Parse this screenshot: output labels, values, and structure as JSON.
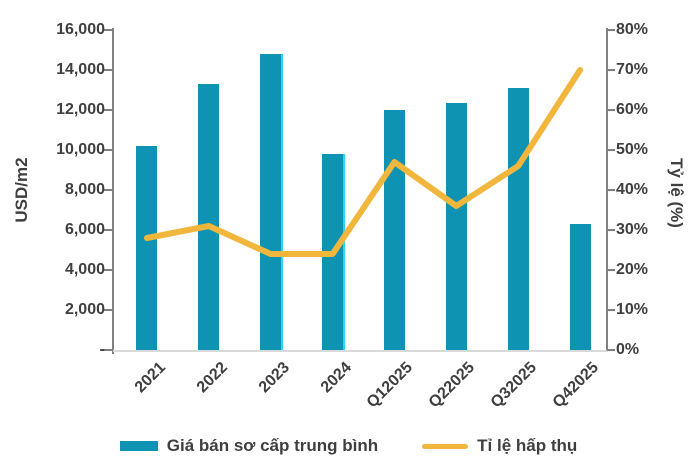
{
  "chart_data": {
    "type": "combo",
    "categories": [
      "2021",
      "2022",
      "2023",
      "2024",
      "Q12025",
      "Q22025",
      "Q32025",
      "Q42025"
    ],
    "series": [
      {
        "name": "Giá bán sơ cấp trung bình",
        "type": "bar",
        "axis": "left",
        "color": "#0E93B2",
        "values": [
          10200,
          13300,
          14800,
          9800,
          12000,
          12350,
          13100,
          6300
        ]
      },
      {
        "name": "Tỉ lệ hấp thụ",
        "type": "line",
        "axis": "right",
        "color": "#F1B73C",
        "values": [
          28,
          31,
          24,
          24,
          47,
          36,
          46,
          70
        ]
      }
    ],
    "left_axis": {
      "title": "USD/m2",
      "min": 0,
      "max": 16000,
      "step": 2000,
      "tick_labels_top_to_bottom": [
        "16,000",
        "14,000",
        "12,000",
        "10,000",
        "8,000",
        "6,000",
        "4,000",
        "2,000",
        "-"
      ]
    },
    "right_axis": {
      "title": "Tỷ lệ (%)",
      "min": 0,
      "max": 80,
      "step": 10,
      "tick_labels_top_to_bottom": [
        "80%",
        "70%",
        "60%",
        "50%",
        "40%",
        "30%",
        "20%",
        "10%",
        "0%"
      ]
    },
    "bar_right_edge_highlight": {
      "category_indexes": [
        2,
        3
      ],
      "color": "#2BD4F2"
    },
    "legend_position": "bottom",
    "grid": "off"
  },
  "legend": {
    "items": [
      {
        "label": "Giá bán sơ cấp trung bình",
        "swatch": "rect",
        "color": "#0E93B2"
      },
      {
        "label": "Tỉ lệ hấp thụ",
        "swatch": "line",
        "color": "#F1B73C"
      }
    ]
  },
  "colors": {
    "bar": "#0E93B2",
    "bar_highlight": "#2BD4F2",
    "line": "#F1B73C",
    "text": "#3F3F3F",
    "axis": "#808080",
    "axis_bottom": "#D9D9D9",
    "background": "#FFFFFF"
  }
}
